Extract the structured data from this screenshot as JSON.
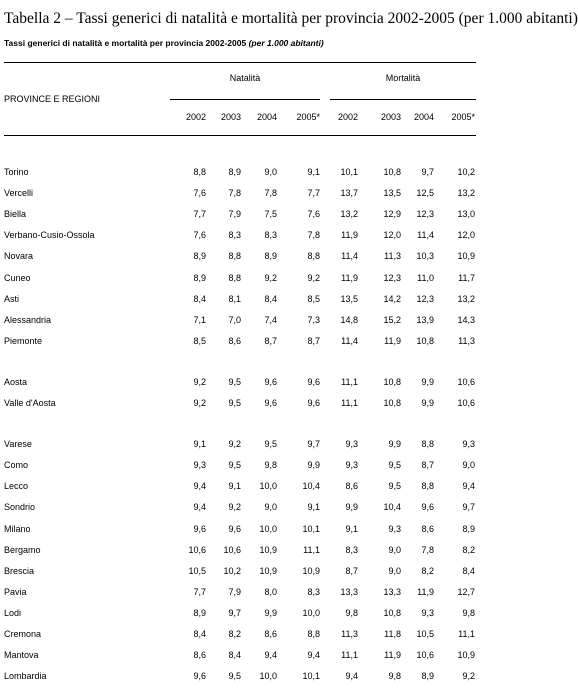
{
  "header": {
    "title": "Tabella 2 – Tassi generici di natalità e mortalità per provincia 2002-2005 (per 1.000 abitanti)",
    "subtitle": "Tassi generici di natalità e mortalità per provincia 2002-2005",
    "subtitle_unit": "(per 1.000 abitanti)"
  },
  "table": {
    "row_header": "PROVINCE E REGIONI",
    "group_headers": [
      "Natalità",
      "Mortalità"
    ],
    "columns": [
      "2002",
      "2003",
      "2004",
      "2005*",
      "2002",
      "2003",
      "2004",
      "2005*"
    ],
    "groups": [
      {
        "rows": [
          [
            "Torino",
            "8,8",
            "8,9",
            "9,0",
            "9,1",
            "10,1",
            "10,8",
            "9,7",
            "10,2"
          ],
          [
            "Vercelli",
            "7,6",
            "7,8",
            "7,8",
            "7,7",
            "13,7",
            "13,5",
            "12,5",
            "13,2"
          ],
          [
            "Biella",
            "7,7",
            "7,9",
            "7,5",
            "7,6",
            "13,2",
            "12,9",
            "12,3",
            "13,0"
          ],
          [
            "Verbano-Cusio-Ossola",
            "7,6",
            "8,3",
            "8,3",
            "7,8",
            "11,9",
            "12,0",
            "11,4",
            "12,0"
          ],
          [
            "Novara",
            "8,9",
            "8,8",
            "8,9",
            "8,8",
            "11,4",
            "11,3",
            "10,3",
            "10,9"
          ],
          [
            "Cuneo",
            "8,9",
            "8,8",
            "9,2",
            "9,2",
            "11,9",
            "12,3",
            "11,0",
            "11,7"
          ],
          [
            "Asti",
            "8,4",
            "8,1",
            "8,4",
            "8,5",
            "13,5",
            "14,2",
            "12,3",
            "13,2"
          ],
          [
            "Alessandria",
            "7,1",
            "7,0",
            "7,4",
            "7,3",
            "14,8",
            "15,2",
            "13,9",
            "14,3"
          ],
          [
            "Piemonte",
            "8,5",
            "8,6",
            "8,7",
            "8,7",
            "11,4",
            "11,9",
            "10,8",
            "11,3"
          ]
        ]
      },
      {
        "rows": [
          [
            "Aosta",
            "9,2",
            "9,5",
            "9,6",
            "9,6",
            "11,1",
            "10,8",
            "9,9",
            "10,6"
          ],
          [
            "Valle d'Aosta",
            "9,2",
            "9,5",
            "9,6",
            "9,6",
            "11,1",
            "10,8",
            "9,9",
            "10,6"
          ]
        ]
      },
      {
        "rows": [
          [
            "Varese",
            "9,1",
            "9,2",
            "9,5",
            "9,7",
            "9,3",
            "9,9",
            "8,8",
            "9,3"
          ],
          [
            "Como",
            "9,3",
            "9,5",
            "9,8",
            "9,9",
            "9,3",
            "9,5",
            "8,7",
            "9,0"
          ],
          [
            "Lecco",
            "9,4",
            "9,1",
            "10,0",
            "10,4",
            "8,6",
            "9,5",
            "8,8",
            "9,4"
          ],
          [
            "Sondrio",
            "9,4",
            "9,2",
            "9,0",
            "9,1",
            "9,9",
            "10,4",
            "9,6",
            "9,7"
          ],
          [
            "Milano",
            "9,6",
            "9,6",
            "10,0",
            "10,1",
            "9,1",
            "9,3",
            "8,6",
            "8,9"
          ],
          [
            "Bergamo",
            "10,6",
            "10,6",
            "10,9",
            "11,1",
            "8,3",
            "9,0",
            "7,8",
            "8,2"
          ],
          [
            "Brescia",
            "10,5",
            "10,2",
            "10,9",
            "10,9",
            "8,7",
            "9,0",
            "8,2",
            "8,4"
          ],
          [
            "Pavia",
            "7,7",
            "7,9",
            "8,0",
            "8,3",
            "13,3",
            "13,3",
            "11,9",
            "12,7"
          ],
          [
            "Lodi",
            "8,9",
            "9,7",
            "9,9",
            "10,0",
            "9,8",
            "10,8",
            "9,3",
            "9,8"
          ],
          [
            "Cremona",
            "8,4",
            "8,2",
            "8,6",
            "8,8",
            "11,3",
            "11,8",
            "10,5",
            "11,1"
          ],
          [
            "Mantova",
            "8,6",
            "8,4",
            "9,4",
            "9,4",
            "11,1",
            "11,9",
            "10,6",
            "10,9"
          ],
          [
            "Lombardia",
            "9,6",
            "9,5",
            "10,0",
            "10,1",
            "9,4",
            "9,8",
            "8,9",
            "9,2"
          ]
        ]
      }
    ]
  }
}
